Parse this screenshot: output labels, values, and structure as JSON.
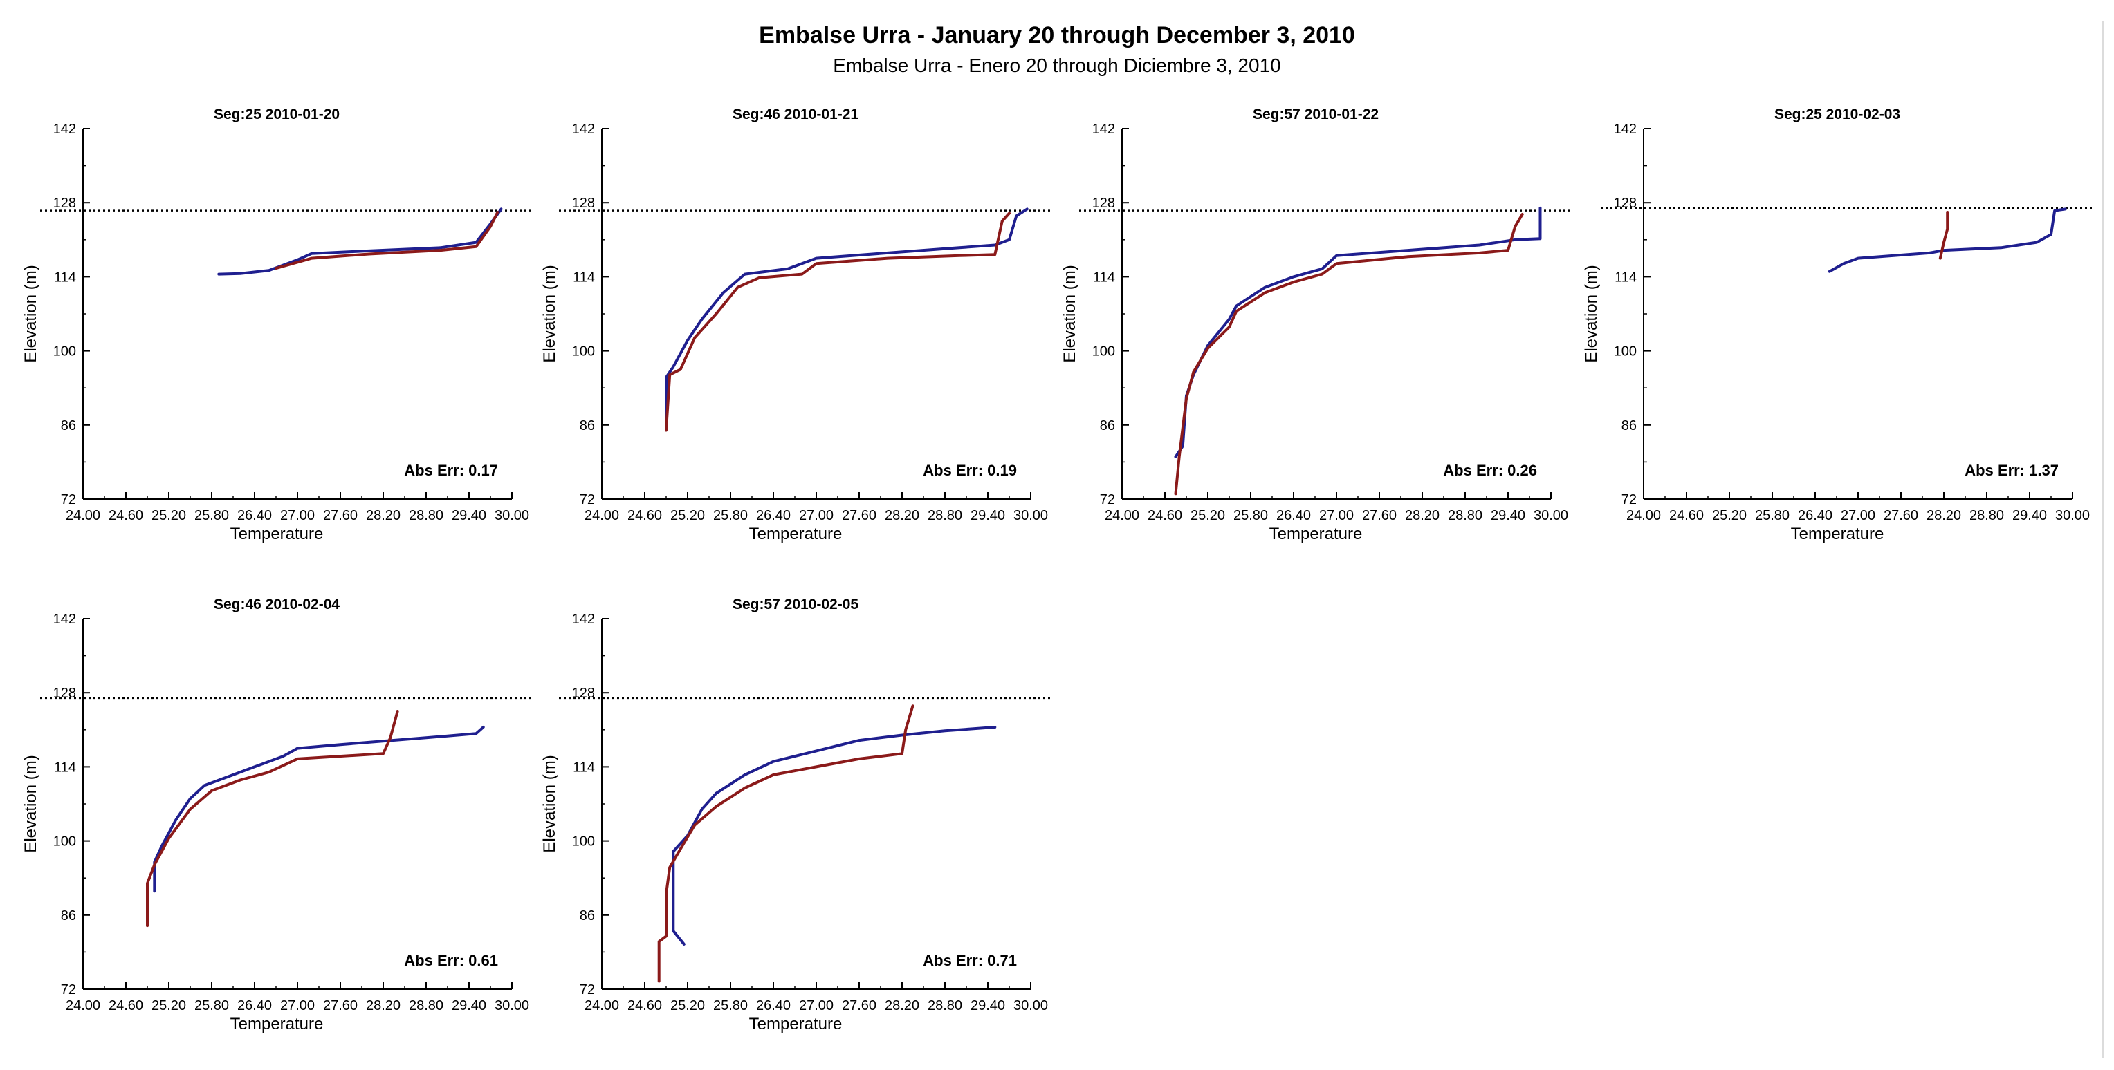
{
  "figure": {
    "title": "Embalse Urra - January 20 through December 3, 2010",
    "subtitle": "Embalse Urra - Enero 20 through Diciembre 3, 2010"
  },
  "colors": {
    "series_blue": "#1f1f8f",
    "series_red": "#8b1a1a",
    "reference_line": "#000000"
  },
  "chart_data": [
    {
      "type": "line",
      "title": "Seg:25  2010-01-20",
      "xlabel": "Temperature",
      "ylabel": "Elevation (m)",
      "xlim": [
        24.0,
        30.0
      ],
      "ylim": [
        72,
        142
      ],
      "xticks": [
        "24.00",
        "24.60",
        "25.20",
        "25.80",
        "26.40",
        "27.00",
        "27.60",
        "28.20",
        "28.80",
        "29.40",
        "30.00"
      ],
      "yticks": [
        "72",
        "86",
        "100",
        "114",
        "128",
        "142"
      ],
      "reference_elevation": 126.5,
      "annotation": "Abs Err: 0.17",
      "series": [
        {
          "color": "blue",
          "points": [
            [
              25.9,
              114.5
            ],
            [
              26.2,
              114.6
            ],
            [
              26.6,
              115.2
            ],
            [
              27.0,
              117.2
            ],
            [
              27.2,
              118.4
            ],
            [
              28.0,
              118.9
            ],
            [
              29.0,
              119.5
            ],
            [
              29.5,
              120.5
            ],
            [
              29.7,
              124
            ],
            [
              29.85,
              126.8
            ]
          ]
        },
        {
          "color": "red",
          "points": [
            [
              26.7,
              115.6
            ],
            [
              27.2,
              117.5
            ],
            [
              28.0,
              118.3
            ],
            [
              29.0,
              119.0
            ],
            [
              29.5,
              119.7
            ],
            [
              29.7,
              123.5
            ],
            [
              29.8,
              126.2
            ]
          ]
        }
      ]
    },
    {
      "type": "line",
      "title": "Seg:46  2010-01-21",
      "xlabel": "Temperature",
      "ylabel": "Elevation (m)",
      "xlim": [
        24.0,
        30.0
      ],
      "ylim": [
        72,
        142
      ],
      "xticks": [
        "24.00",
        "24.60",
        "25.20",
        "25.80",
        "26.40",
        "27.00",
        "27.60",
        "28.20",
        "28.80",
        "29.40",
        "30.00"
      ],
      "yticks": [
        "72",
        "86",
        "100",
        "114",
        "128",
        "142"
      ],
      "reference_elevation": 126.5,
      "annotation": "Abs Err: 0.19",
      "series": [
        {
          "color": "blue",
          "points": [
            [
              24.9,
              86.5
            ],
            [
              24.9,
              95.0
            ],
            [
              25.0,
              97.0
            ],
            [
              25.2,
              102.0
            ],
            [
              25.4,
              106.0
            ],
            [
              25.7,
              111.0
            ],
            [
              26.0,
              114.5
            ],
            [
              26.6,
              115.5
            ],
            [
              27.0,
              117.5
            ],
            [
              28.0,
              118.5
            ],
            [
              29.0,
              119.5
            ],
            [
              29.5,
              120.0
            ],
            [
              29.7,
              121.0
            ],
            [
              29.8,
              125.5
            ],
            [
              29.95,
              126.8
            ]
          ]
        },
        {
          "color": "red",
          "points": [
            [
              24.9,
              85.0
            ],
            [
              24.95,
              95.5
            ],
            [
              25.1,
              96.5
            ],
            [
              25.3,
              102.5
            ],
            [
              25.6,
              107.0
            ],
            [
              25.9,
              112.0
            ],
            [
              26.2,
              113.8
            ],
            [
              26.8,
              114.5
            ],
            [
              27.0,
              116.5
            ],
            [
              28.0,
              117.5
            ],
            [
              29.0,
              118.0
            ],
            [
              29.5,
              118.2
            ],
            [
              29.6,
              124.5
            ],
            [
              29.7,
              126.0
            ]
          ]
        }
      ]
    },
    {
      "type": "line",
      "title": "Seg:57  2010-01-22",
      "xlabel": "Temperature",
      "ylabel": "Elevation (m)",
      "xlim": [
        24.0,
        30.0
      ],
      "ylim": [
        72,
        142
      ],
      "xticks": [
        "24.00",
        "24.60",
        "25.20",
        "25.80",
        "26.40",
        "27.00",
        "27.60",
        "28.20",
        "28.80",
        "29.40",
        "30.00"
      ],
      "yticks": [
        "72",
        "86",
        "100",
        "114",
        "128",
        "142"
      ],
      "reference_elevation": 126.5,
      "annotation": "Abs Err: 0.26",
      "series": [
        {
          "color": "blue",
          "points": [
            [
              24.75,
              80.0
            ],
            [
              24.85,
              82.0
            ],
            [
              24.9,
              91.5
            ],
            [
              25.0,
              95.5
            ],
            [
              25.2,
              101.0
            ],
            [
              25.5,
              106.0
            ],
            [
              25.6,
              108.5
            ],
            [
              26.0,
              112.0
            ],
            [
              26.4,
              114.0
            ],
            [
              26.8,
              115.5
            ],
            [
              27.0,
              118.0
            ],
            [
              28.0,
              119.0
            ],
            [
              29.0,
              120.0
            ],
            [
              29.5,
              121.0
            ],
            [
              29.85,
              121.2
            ],
            [
              29.85,
              127.0
            ]
          ]
        },
        {
          "color": "red",
          "points": [
            [
              24.75,
              73.0
            ],
            [
              24.8,
              80.0
            ],
            [
              24.9,
              91.0
            ],
            [
              25.0,
              96.0
            ],
            [
              25.2,
              100.5
            ],
            [
              25.5,
              104.5
            ],
            [
              25.6,
              107.5
            ],
            [
              26.0,
              111.0
            ],
            [
              26.4,
              113.0
            ],
            [
              26.8,
              114.5
            ],
            [
              27.0,
              116.5
            ],
            [
              28.0,
              117.8
            ],
            [
              29.0,
              118.5
            ],
            [
              29.4,
              119.0
            ],
            [
              29.5,
              123.5
            ],
            [
              29.6,
              125.8
            ]
          ]
        }
      ]
    },
    {
      "type": "line",
      "title": "Seg:25  2010-02-03",
      "xlabel": "Temperature",
      "ylabel": "Elevation (m)",
      "xlim": [
        24.0,
        30.0
      ],
      "ylim": [
        72,
        142
      ],
      "xticks": [
        "24.00",
        "24.60",
        "25.20",
        "25.80",
        "26.40",
        "27.00",
        "27.60",
        "28.20",
        "28.80",
        "29.40",
        "30.00"
      ],
      "yticks": [
        "72",
        "86",
        "100",
        "114",
        "128",
        "142"
      ],
      "reference_elevation": 127.0,
      "annotation": "Abs Err: 1.37",
      "series": [
        {
          "color": "blue",
          "points": [
            [
              26.6,
              115.0
            ],
            [
              26.8,
              116.5
            ],
            [
              27.0,
              117.5
            ],
            [
              28.0,
              118.5
            ],
            [
              28.2,
              119.0
            ],
            [
              29.0,
              119.5
            ],
            [
              29.5,
              120.5
            ],
            [
              29.7,
              122.0
            ],
            [
              29.75,
              126.5
            ],
            [
              29.9,
              126.8
            ]
          ]
        },
        {
          "color": "red",
          "points": [
            [
              28.15,
              117.5
            ],
            [
              28.2,
              120.5
            ],
            [
              28.25,
              123.0
            ],
            [
              28.25,
              126.2
            ]
          ]
        }
      ]
    },
    {
      "type": "line",
      "title": "Seg:46  2010-02-04",
      "xlabel": "Temperature",
      "ylabel": "Elevation (m)",
      "xlim": [
        24.0,
        30.0
      ],
      "ylim": [
        72,
        142
      ],
      "xticks": [
        "24.00",
        "24.60",
        "25.20",
        "25.80",
        "26.40",
        "27.00",
        "27.60",
        "28.20",
        "28.80",
        "29.40",
        "30.00"
      ],
      "yticks": [
        "72",
        "86",
        "100",
        "114",
        "128",
        "142"
      ],
      "reference_elevation": 127.0,
      "annotation": "Abs Err: 0.61",
      "series": [
        {
          "color": "blue",
          "points": [
            [
              25.0,
              90.5
            ],
            [
              25.0,
              96.0
            ],
            [
              25.1,
              99.0
            ],
            [
              25.3,
              104.0
            ],
            [
              25.5,
              108.0
            ],
            [
              25.7,
              110.5
            ],
            [
              26.0,
              112.0
            ],
            [
              26.4,
              114.0
            ],
            [
              26.8,
              116.0
            ],
            [
              27.0,
              117.5
            ],
            [
              27.6,
              118.2
            ],
            [
              28.8,
              119.5
            ],
            [
              29.5,
              120.3
            ],
            [
              29.6,
              121.5
            ]
          ]
        },
        {
          "color": "red",
          "points": [
            [
              24.9,
              84.0
            ],
            [
              24.9,
              92.0
            ],
            [
              25.0,
              95.5
            ],
            [
              25.2,
              100.5
            ],
            [
              25.5,
              106.0
            ],
            [
              25.8,
              109.5
            ],
            [
              26.2,
              111.5
            ],
            [
              26.6,
              113.0
            ],
            [
              27.0,
              115.5
            ],
            [
              28.2,
              116.5
            ],
            [
              28.3,
              119.5
            ],
            [
              28.4,
              124.5
            ]
          ]
        }
      ]
    },
    {
      "type": "line",
      "title": "Seg:57  2010-02-05",
      "xlabel": "Temperature",
      "ylabel": "Elevation (m)",
      "xlim": [
        24.0,
        30.0
      ],
      "ylim": [
        72,
        142
      ],
      "xticks": [
        "24.00",
        "24.60",
        "25.20",
        "25.80",
        "26.40",
        "27.00",
        "27.60",
        "28.20",
        "28.80",
        "29.40",
        "30.00"
      ],
      "yticks": [
        "72",
        "86",
        "100",
        "114",
        "128",
        "142"
      ],
      "reference_elevation": 127.0,
      "annotation": "Abs Err: 0.71",
      "series": [
        {
          "color": "blue",
          "points": [
            [
              25.15,
              80.5
            ],
            [
              25.0,
              83.0
            ],
            [
              25.0,
              98.0
            ],
            [
              25.2,
              101.0
            ],
            [
              25.4,
              106.0
            ],
            [
              25.6,
              109.0
            ],
            [
              26.0,
              112.5
            ],
            [
              26.4,
              115.0
            ],
            [
              27.0,
              117.0
            ],
            [
              27.6,
              119.0
            ],
            [
              28.2,
              120.0
            ],
            [
              28.8,
              120.8
            ],
            [
              29.5,
              121.5
            ]
          ]
        },
        {
          "color": "red",
          "points": [
            [
              24.8,
              73.5
            ],
            [
              24.8,
              81.0
            ],
            [
              24.9,
              82.0
            ],
            [
              24.9,
              90.0
            ],
            [
              24.95,
              95.0
            ],
            [
              25.1,
              98.5
            ],
            [
              25.3,
              103.0
            ],
            [
              25.6,
              106.5
            ],
            [
              26.0,
              110.0
            ],
            [
              26.4,
              112.5
            ],
            [
              27.0,
              114.0
            ],
            [
              27.6,
              115.5
            ],
            [
              28.2,
              116.5
            ],
            [
              28.25,
              121.0
            ],
            [
              28.35,
              125.5
            ]
          ]
        }
      ]
    }
  ]
}
